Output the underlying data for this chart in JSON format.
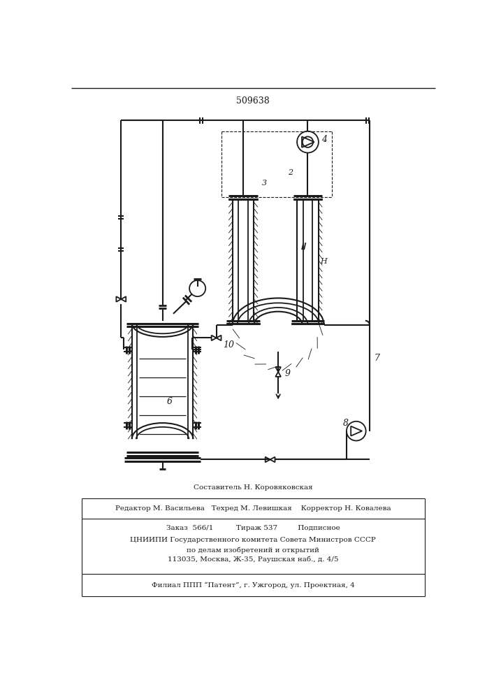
{
  "title_number": "509638",
  "bg_color": "#ffffff",
  "line_color": "#1a1a1a",
  "footer_lines": [
    "Составитель Н. Коровяковская",
    "Редактор М. Васильева   Техред М. Левишкая    Корректор Н. Ковалева",
    "Заказ  566/1          Тираж 537         Подписное",
    "ЦНИИПИ Государственного комитета Совета Министров СССР",
    "по делам изобретений и открытий",
    "113035, Москва, Ж-35, Раушская наб., д. 4/5",
    "Филиал ППП “Патент”, г. Ужгород, ул. Проектная, 4"
  ]
}
